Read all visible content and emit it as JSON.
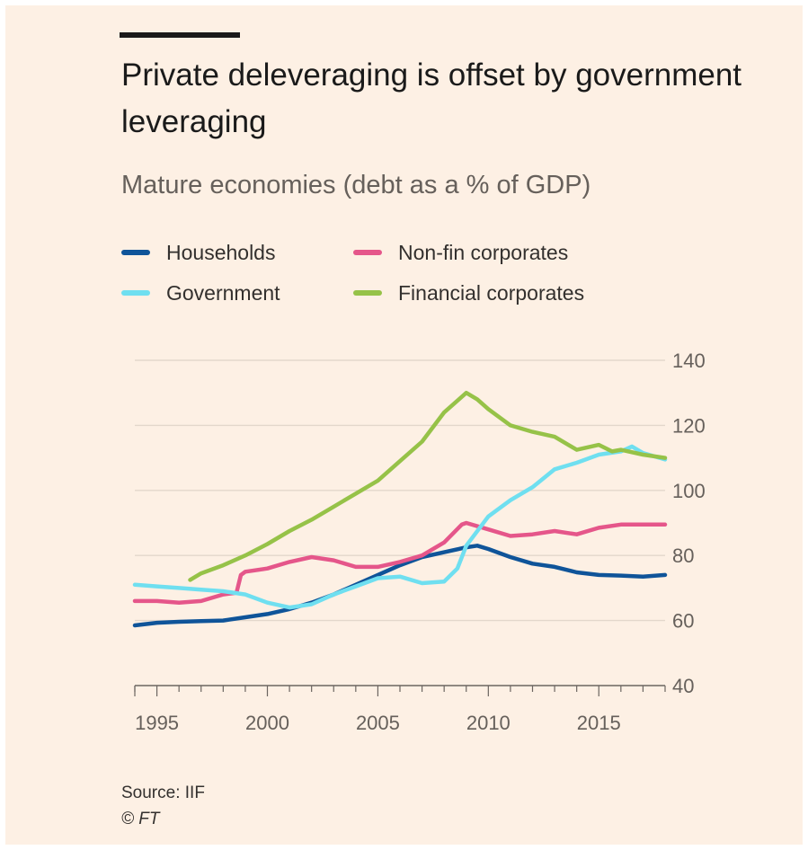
{
  "title": "Private deleveraging is offset by government leveraging",
  "subtitle": "Mature economies (debt as a % of GDP)",
  "legend": [
    {
      "label": "Households",
      "color": "#0f5499"
    },
    {
      "label": "Non-fin corporates",
      "color": "#e5568a"
    },
    {
      "label": "Government",
      "color": "#6fdff0"
    },
    {
      "label": "Financial corporates",
      "color": "#96c248"
    }
  ],
  "source": "Source: IIF",
  "credit": "© FT",
  "chart_data": {
    "type": "line",
    "title": "Private deleveraging is offset by government leveraging",
    "subtitle": "Mature economies (debt as a % of GDP)",
    "xlabel": "",
    "ylabel": "",
    "xlim": [
      1994.0,
      2018.0
    ],
    "ylim": [
      40,
      140
    ],
    "x_ticks": [
      1995,
      2000,
      2005,
      2010,
      2015
    ],
    "y_ticks": [
      40,
      60,
      80,
      100,
      120,
      140
    ],
    "grid": "horizontal",
    "legend_position": "top",
    "series": [
      {
        "name": "Households",
        "color": "#0f5499",
        "points": [
          [
            1994.0,
            58.5
          ],
          [
            1995,
            59.3
          ],
          [
            1996,
            59.6
          ],
          [
            1997,
            59.8
          ],
          [
            1998,
            60.0
          ],
          [
            1999,
            61.0
          ],
          [
            2000,
            62.0
          ],
          [
            2001,
            63.5
          ],
          [
            2002,
            65.5
          ],
          [
            2003,
            68.0
          ],
          [
            2004,
            71.0
          ],
          [
            2005,
            74.0
          ],
          [
            2006,
            77.0
          ],
          [
            2007,
            79.5
          ],
          [
            2008,
            81.0
          ],
          [
            2009,
            82.5
          ],
          [
            2009.5,
            83.0
          ],
          [
            2010,
            82.0
          ],
          [
            2011,
            79.5
          ],
          [
            2012,
            77.5
          ],
          [
            2013,
            76.5
          ],
          [
            2014,
            74.8
          ],
          [
            2015,
            74.0
          ],
          [
            2016,
            73.8
          ],
          [
            2017,
            73.5
          ],
          [
            2018,
            74.0
          ]
        ]
      },
      {
        "name": "Non-fin corporates",
        "color": "#e5568a",
        "points": [
          [
            1994.0,
            66.0
          ],
          [
            1995,
            66.0
          ],
          [
            1996,
            65.5
          ],
          [
            1997,
            66.0
          ],
          [
            1998,
            68.0
          ],
          [
            1998.6,
            68.5
          ],
          [
            1998.8,
            74.0
          ],
          [
            1999,
            75.0
          ],
          [
            2000,
            76.0
          ],
          [
            2001,
            78.0
          ],
          [
            2002,
            79.5
          ],
          [
            2003,
            78.5
          ],
          [
            2004,
            76.5
          ],
          [
            2005,
            76.5
          ],
          [
            2006,
            78.0
          ],
          [
            2007,
            80.0
          ],
          [
            2008,
            84.0
          ],
          [
            2008.8,
            89.5
          ],
          [
            2009,
            90.0
          ],
          [
            2010,
            88.0
          ],
          [
            2011,
            86.0
          ],
          [
            2012,
            86.5
          ],
          [
            2013,
            87.5
          ],
          [
            2014,
            86.5
          ],
          [
            2015,
            88.5
          ],
          [
            2016,
            89.5
          ],
          [
            2017,
            89.5
          ],
          [
            2018,
            89.5
          ]
        ]
      },
      {
        "name": "Government",
        "color": "#6fdff0",
        "points": [
          [
            1994.0,
            71.0
          ],
          [
            1995,
            70.5
          ],
          [
            1996,
            70.0
          ],
          [
            1997,
            69.5
          ],
          [
            1998,
            69.0
          ],
          [
            1999,
            68.0
          ],
          [
            2000,
            65.5
          ],
          [
            2001,
            64.0
          ],
          [
            2002,
            65.0
          ],
          [
            2003,
            68.0
          ],
          [
            2004,
            70.5
          ],
          [
            2005,
            73.0
          ],
          [
            2006,
            73.5
          ],
          [
            2007,
            71.5
          ],
          [
            2008,
            72.0
          ],
          [
            2008.6,
            76.0
          ],
          [
            2009,
            83.0
          ],
          [
            2010,
            92.0
          ],
          [
            2011,
            97.0
          ],
          [
            2012,
            101.0
          ],
          [
            2013,
            106.5
          ],
          [
            2014,
            108.5
          ],
          [
            2015,
            111.0
          ],
          [
            2016,
            112.0
          ],
          [
            2016.5,
            113.5
          ],
          [
            2017,
            111.5
          ],
          [
            2018,
            109.5
          ]
        ]
      },
      {
        "name": "Financial corporates",
        "color": "#96c248",
        "points": [
          [
            1996.5,
            72.5
          ],
          [
            1997,
            74.5
          ],
          [
            1998,
            77.0
          ],
          [
            1999,
            80.0
          ],
          [
            2000,
            83.5
          ],
          [
            2001,
            87.5
          ],
          [
            2002,
            91.0
          ],
          [
            2003,
            95.0
          ],
          [
            2004,
            99.0
          ],
          [
            2005,
            103.0
          ],
          [
            2006,
            109.0
          ],
          [
            2007,
            115.0
          ],
          [
            2008,
            124.0
          ],
          [
            2009,
            130.0
          ],
          [
            2009.5,
            128.0
          ],
          [
            2010,
            125.0
          ],
          [
            2011,
            120.0
          ],
          [
            2012,
            118.0
          ],
          [
            2013,
            116.5
          ],
          [
            2014,
            112.5
          ],
          [
            2015,
            114.0
          ],
          [
            2015.6,
            112.0
          ],
          [
            2016,
            112.5
          ],
          [
            2017,
            111.0
          ],
          [
            2018,
            110.0
          ]
        ]
      }
    ]
  }
}
